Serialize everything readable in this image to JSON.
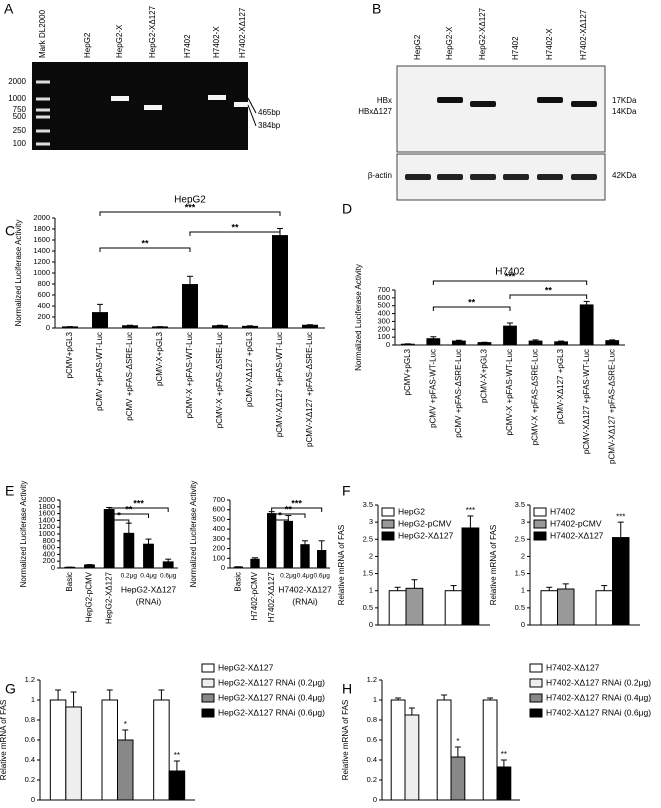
{
  "panels": {
    "A": {
      "letter": "A",
      "lanes": [
        "Mark DL2000",
        "HepG2",
        "HepG2-X",
        "HepG2-XΔ127",
        "H7402",
        "H7402-X",
        "H7402-XΔ127"
      ],
      "ladder": [
        2000,
        1000,
        750,
        500,
        250,
        100
      ],
      "band_labels": [
        "465bp",
        "384bp"
      ]
    },
    "B": {
      "letter": "B",
      "lanes": [
        "HepG2",
        "HepG2-X",
        "HepG2-XΔ127",
        "H7402",
        "H7402-X",
        "H7402-XΔ127"
      ],
      "left_labels": [
        "HBx",
        "HBxΔ127",
        "β-actin"
      ],
      "right_labels": [
        "17KDa",
        "14KDa",
        "42KDa"
      ]
    },
    "letters": [
      "C",
      "D",
      "E",
      "F",
      "G",
      "H"
    ]
  },
  "chart_data": [
    {
      "type": "bar",
      "title": "HepG2",
      "y_label": "Normalized Luciferase Activity",
      "categories": [
        "pCMV+pGL3",
        "pCMV +pFAS-WT-Luc",
        "pCMV +pFAS-ΔSRE-Luc",
        "pCMV-X+pGL3",
        "pCMV-X +pFAS-WT-Luc",
        "pCMV-X +pFAS-ΔSRE-Luc",
        "pCMV-XΔ127 +pGL3",
        "pCMV-XΔ127 +pFAS-WT-Luc",
        "pCMV-XΔ127 +pFAS-ΔSRE-Luc"
      ],
      "values": [
        20,
        280,
        40,
        20,
        790,
        40,
        30,
        1680,
        50
      ],
      "errors": [
        5,
        150,
        10,
        5,
        150,
        10,
        10,
        130,
        10
      ],
      "color": "#000000",
      "ylim": [
        0,
        2000
      ],
      "yticks": [
        0,
        200,
        400,
        600,
        800,
        1000,
        1200,
        1400,
        1600,
        1800,
        2000
      ],
      "annotations": [
        "***",
        "**",
        "**"
      ]
    },
    {
      "type": "bar",
      "title": "H7402",
      "y_label": "Normalized Luciferase Activity",
      "categories": [
        "pCMV+pGL3",
        "pCMV +pFAS-WT-Luc",
        "pCMV +pFAS-ΔSRE-Luc",
        "pCMV-X+pGL3",
        "pCMV-X +pFAS-WT-Luc",
        "pCMV-X +pFAS-ΔSRE-Luc",
        "pCMV-XΔ127 +pGL3",
        "pCMV-XΔ127 +pFAS-WT-Luc",
        "pCMV-XΔ127 +pFAS-ΔSRE-Luc"
      ],
      "values": [
        10,
        80,
        50,
        30,
        240,
        50,
        40,
        510,
        55
      ],
      "errors": [
        5,
        25,
        10,
        5,
        40,
        15,
        10,
        45,
        10
      ],
      "color": "#000000",
      "ylim": [
        0,
        700
      ],
      "yticks": [
        0,
        100,
        200,
        300,
        400,
        500,
        600,
        700
      ],
      "annotations": [
        "***",
        "**",
        "**"
      ]
    },
    {
      "type": "bar",
      "y_label": "Normalized Luciferase Activity",
      "categories": [
        "Basic",
        "HepG2-pCMV",
        "HepG2-XΔ127",
        "0.2μg",
        "0.4μg",
        "0.6μg"
      ],
      "group_label": "HepG2-XΔ127",
      "group_note": "(RNAi)",
      "values": [
        20,
        90,
        1720,
        1020,
        700,
        180
      ],
      "errors": [
        5,
        10,
        60,
        300,
        150,
        80
      ],
      "color": "#000000",
      "ylim": [
        0,
        2000
      ],
      "yticks": [
        0,
        200,
        400,
        600,
        800,
        1000,
        1200,
        1400,
        1600,
        1800,
        2000
      ],
      "annotations": [
        "*",
        "**",
        "***"
      ]
    },
    {
      "type": "bar",
      "y_label": "Normalized Luciferase Activity",
      "categories": [
        "Basic",
        "H7402-pCMV",
        "H7402-XΔ127",
        "0.2μg",
        "0.4μg",
        "0.6μg"
      ],
      "group_label": "H7402-XΔ127",
      "group_note": "(RNAi)",
      "values": [
        10,
        90,
        560,
        480,
        240,
        180
      ],
      "errors": [
        3,
        15,
        20,
        60,
        40,
        100
      ],
      "color": "#000000",
      "ylim": [
        0,
        700
      ],
      "yticks": [
        0,
        100,
        200,
        300,
        400,
        500,
        600,
        700
      ],
      "annotations": [
        "*",
        "**",
        "***"
      ]
    },
    {
      "type": "bar",
      "y_label": "Relative mRNA of FAS",
      "categories": [
        null,
        null
      ],
      "series": [
        {
          "name": "HepG2",
          "color": "#ffffff",
          "values": [
            1,
            1
          ],
          "errors": [
            0.1,
            0.15
          ]
        },
        {
          "name": "HepG2-pCMV",
          "color": "#999999",
          "values": [
            1.07,
            null
          ],
          "errors": [
            0.25,
            null
          ]
        },
        {
          "name": "HepG2-XΔ127",
          "color": "#000000",
          "values": [
            null,
            2.83
          ],
          "errors": [
            null,
            0.35
          ]
        }
      ],
      "ylim": [
        0,
        3.5
      ],
      "yticks": [
        0,
        0.5,
        1,
        1.5,
        2,
        2.5,
        3,
        3.5
      ],
      "annotations": [
        "***"
      ],
      "legend": "upper left"
    },
    {
      "type": "bar",
      "y_label": "Relative mRNA of FAS",
      "categories": [
        null,
        null
      ],
      "series": [
        {
          "name": "H7402",
          "color": "#ffffff",
          "values": [
            1,
            1
          ],
          "errors": [
            0.1,
            0.15
          ]
        },
        {
          "name": "H7402-pCMV",
          "color": "#999999",
          "values": [
            1.05,
            null
          ],
          "errors": [
            0.15,
            null
          ]
        },
        {
          "name": "H7402-XΔ127",
          "color": "#000000",
          "values": [
            null,
            2.55
          ],
          "errors": [
            null,
            0.45
          ]
        }
      ],
      "ylim": [
        0,
        3.5
      ],
      "yticks": [
        0,
        0.5,
        1,
        1.5,
        2,
        2.5,
        3,
        3.5
      ],
      "annotations": [
        "***"
      ],
      "legend": "upper left"
    },
    {
      "type": "bar",
      "y_label": "Relative mRNA of FAS",
      "categories": [
        null,
        null,
        null
      ],
      "series": [
        {
          "name": "HepG2-XΔ127",
          "color": "#ffffff",
          "values": [
            1,
            1,
            1
          ],
          "errors": [
            0.1,
            0.1,
            0.1
          ]
        },
        {
          "name": "HepG2-XΔ127 RNAi (0.2μg)",
          "color": "#eeeeee",
          "values": [
            0.93,
            null,
            null
          ],
          "errors": [
            0.15,
            null,
            null
          ]
        },
        {
          "name": "HepG2-XΔ127 RNAi (0.4μg)",
          "color": "#888888",
          "values": [
            null,
            0.6,
            null
          ],
          "errors": [
            null,
            0.1,
            null
          ]
        },
        {
          "name": "HepG2-XΔ127 RNAi (0.6μg)",
          "color": "#000000",
          "values": [
            null,
            null,
            0.29
          ],
          "errors": [
            null,
            null,
            0.1
          ]
        }
      ],
      "ylim": [
        0,
        1.2
      ],
      "yticks": [
        0,
        0.2,
        0.4,
        0.6,
        0.8,
        1,
        1.2
      ],
      "annotations": [
        "*",
        "**"
      ],
      "legend": "right"
    },
    {
      "type": "bar",
      "y_label": "Relative mRNA of FAS",
      "categories": [
        null,
        null,
        null
      ],
      "series": [
        {
          "name": "H7402-XΔ127",
          "color": "#ffffff",
          "values": [
            1,
            1,
            1
          ],
          "errors": [
            0.02,
            0.05,
            0.02
          ]
        },
        {
          "name": "H7402-XΔ127 RNAi (0.2μg)",
          "color": "#eeeeee",
          "values": [
            0.85,
            null,
            null
          ],
          "errors": [
            0.07,
            null,
            null
          ]
        },
        {
          "name": "H7402-XΔ127 RNAi (0.4μg)",
          "color": "#888888",
          "values": [
            null,
            0.43,
            null
          ],
          "errors": [
            null,
            0.1,
            null
          ]
        },
        {
          "name": "H7402-XΔ127 RNAi (0.6μg)",
          "color": "#000000",
          "values": [
            null,
            null,
            0.33
          ],
          "errors": [
            null,
            null,
            0.07
          ]
        }
      ],
      "ylim": [
        0,
        1.2
      ],
      "yticks": [
        0,
        0.2,
        0.4,
        0.6,
        0.8,
        1,
        1.2
      ],
      "annotations": [
        "*",
        "**"
      ],
      "legend": "right"
    }
  ]
}
